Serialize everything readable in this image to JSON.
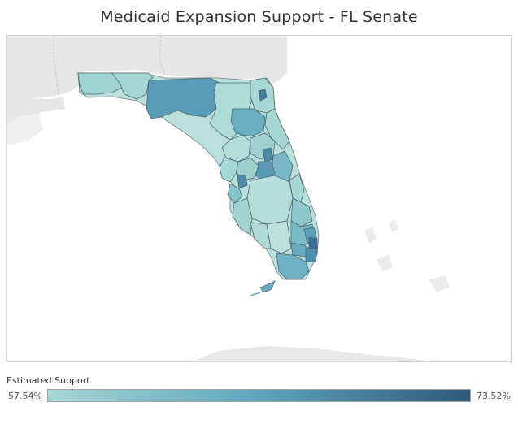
{
  "title": "Medicaid Expansion Support - FL Senate",
  "legend": {
    "title": "Estimated Support",
    "min_label": "57.54%",
    "max_label": "73.52%",
    "min_value": 57.54,
    "max_value": 73.52,
    "color_low": "#a5d6d2",
    "color_high": "#2e5879"
  },
  "colors": {
    "land": "#e6e6e6",
    "land_label_gray": "#d9d9d9",
    "water": "#ffffff",
    "district_border": "#5d6b70"
  }
}
